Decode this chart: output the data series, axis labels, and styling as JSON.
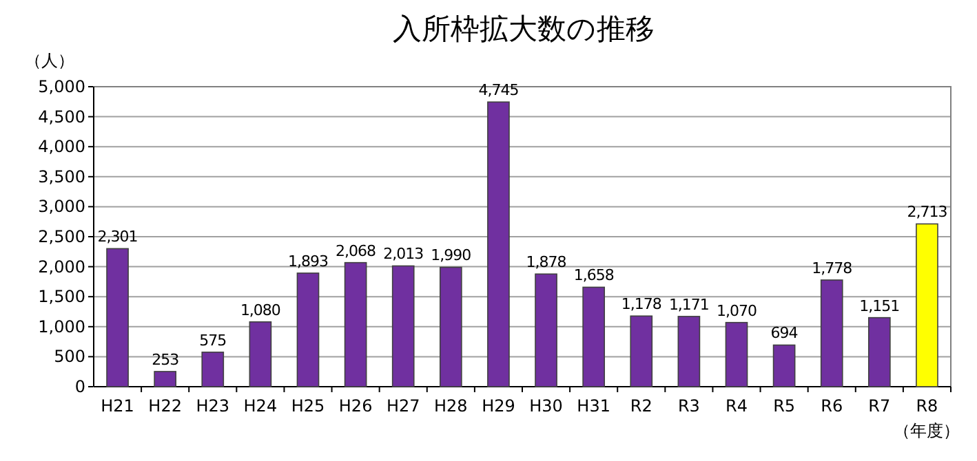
{
  "chart_data": {
    "type": "bar",
    "title": "入所枠拡大数の推移",
    "ylabel": "（人）",
    "xlabel": "（年度）",
    "categories": [
      "H21",
      "H22",
      "H23",
      "H24",
      "H25",
      "H26",
      "H27",
      "H28",
      "H29",
      "H30",
      "H31",
      "R2",
      "R3",
      "R4",
      "R5",
      "R6",
      "R7",
      "R8"
    ],
    "values": [
      2301,
      253,
      575,
      1080,
      1893,
      2068,
      2013,
      1990,
      4745,
      1878,
      1658,
      1178,
      1171,
      1070,
      694,
      1778,
      1151,
      2713
    ],
    "value_labels": [
      "2,301",
      "253",
      "575",
      "1,080",
      "1,893",
      "2,068",
      "2,013",
      "1,990",
      "4,745",
      "1,878",
      "1,658",
      "1,178",
      "1,171",
      "1,070",
      "694",
      "1,778",
      "1,151",
      "2,713"
    ],
    "colors": [
      "#7030a0",
      "#7030a0",
      "#7030a0",
      "#7030a0",
      "#7030a0",
      "#7030a0",
      "#7030a0",
      "#7030a0",
      "#7030a0",
      "#7030a0",
      "#7030a0",
      "#7030a0",
      "#7030a0",
      "#7030a0",
      "#7030a0",
      "#7030a0",
      "#7030a0",
      "#ffff00"
    ],
    "ylim": [
      0,
      5000
    ],
    "yticks": [
      0,
      500,
      {
        "value": 1000,
        "label": "1,000"
      },
      {
        "value": 1500,
        "label": "1,500"
      },
      {
        "value": 2000,
        "label": "2,000"
      },
      {
        "value": 2500,
        "label": "2,500"
      },
      {
        "value": 3000,
        "label": "3,000"
      },
      {
        "value": 3500,
        "label": "3,500"
      },
      {
        "value": 4000,
        "label": "4,000"
      },
      {
        "value": 4500,
        "label": "4,500"
      },
      {
        "value": 5000,
        "label": "5,000"
      }
    ],
    "grid": "y"
  }
}
